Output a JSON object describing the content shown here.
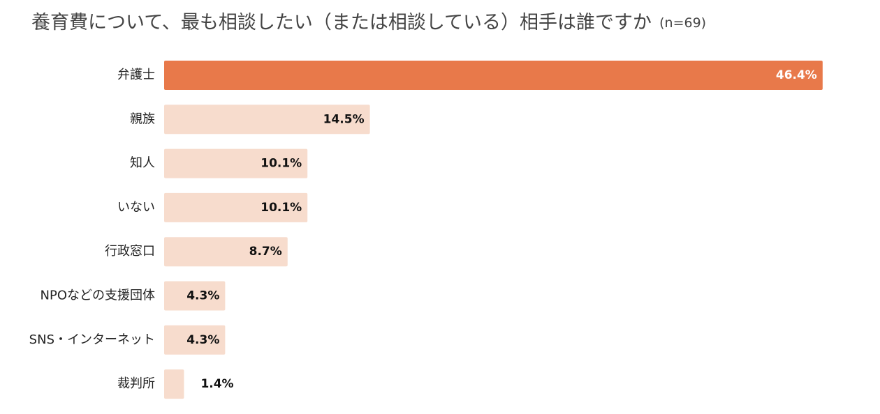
{
  "chart_data": {
    "type": "bar",
    "orientation": "horizontal",
    "title": "養育費について、最も相談したい（または相談している）相手は誰ですか",
    "subtitle": "(n=69)",
    "categories": [
      "弁護士",
      "親族",
      "知人",
      "いない",
      "行政窓口",
      "NPOなどの支援団体",
      "SNS・インターネット",
      "裁判所"
    ],
    "values": [
      46.4,
      14.5,
      10.1,
      10.1,
      8.7,
      4.3,
      4.3,
      1.4
    ],
    "value_labels": [
      "46.4%",
      "14.5%",
      "10.1%",
      "10.1%",
      "8.7%",
      "4.3%",
      "4.3%",
      "1.4%"
    ],
    "colors": [
      "#e8794a",
      "#f7dccd",
      "#f7dccd",
      "#f7dccd",
      "#f7dccd",
      "#f7dccd",
      "#f7dccd",
      "#f7dccd"
    ]
  }
}
